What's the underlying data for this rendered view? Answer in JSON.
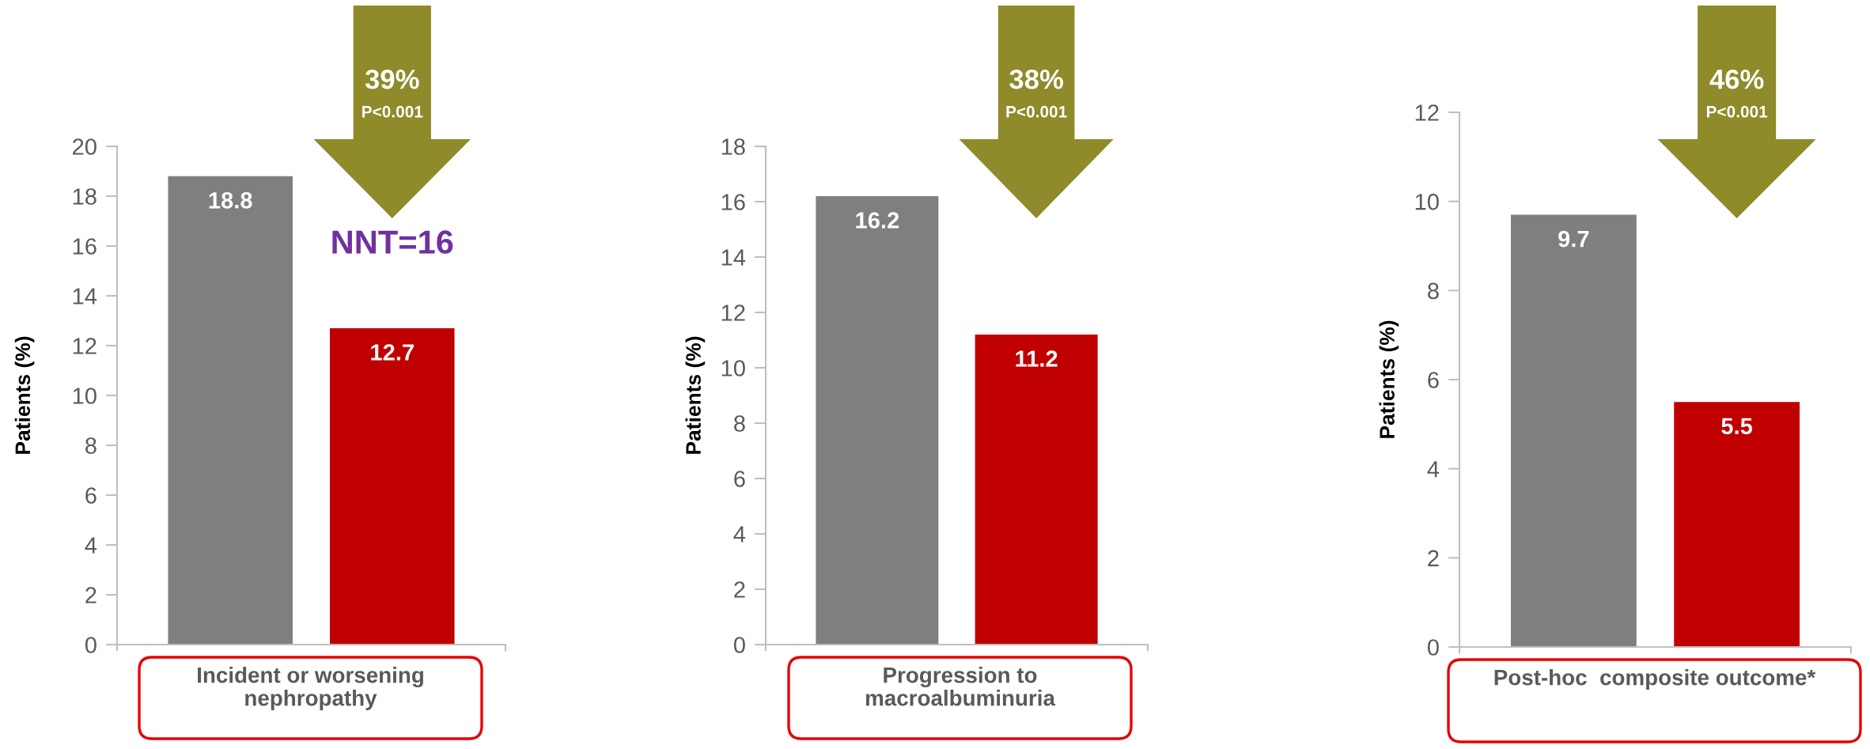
{
  "chart_data": [
    {
      "type": "bar",
      "ylabel": "Patients (%)",
      "xlabel": "Incident or worsening\nnephropathy",
      "categories": [
        null,
        null
      ],
      "values": [
        18.8,
        12.7
      ],
      "colors": [
        "#7f7f7f",
        "#c00000"
      ],
      "ylim": [
        0,
        20
      ],
      "yticks": [
        0,
        2,
        4,
        6,
        8,
        10,
        12,
        14,
        16,
        18,
        20
      ],
      "data_labels": true,
      "tick_labels": "y",
      "annotations": [
        "39%",
        "P<0.001",
        "NNT=16"
      ]
    },
    {
      "type": "bar",
      "ylabel": "Patients (%)",
      "xlabel": "Progression to\nmacroalbuminuria",
      "categories": [
        null,
        null
      ],
      "values": [
        16.2,
        11.2
      ],
      "colors": [
        "#7f7f7f",
        "#c00000"
      ],
      "ylim": [
        0,
        18
      ],
      "yticks": [
        0,
        2,
        4,
        6,
        8,
        10,
        12,
        14,
        16,
        18
      ],
      "data_labels": true,
      "tick_labels": "y",
      "annotations": [
        "38%",
        "P<0.001"
      ]
    },
    {
      "type": "bar",
      "ylabel": "Patients (%)",
      "xlabel": "Post-hoc  composite outcome*",
      "categories": [
        null,
        null
      ],
      "values": [
        9.7,
        5.5
      ],
      "colors": [
        "#7f7f7f",
        "#c00000"
      ],
      "ylim": [
        0,
        12
      ],
      "yticks": [
        0,
        2,
        4,
        6,
        8,
        10,
        12
      ],
      "data_labels": true,
      "tick_labels": "y",
      "annotations": [
        "46%",
        "P<0.001"
      ]
    }
  ]
}
